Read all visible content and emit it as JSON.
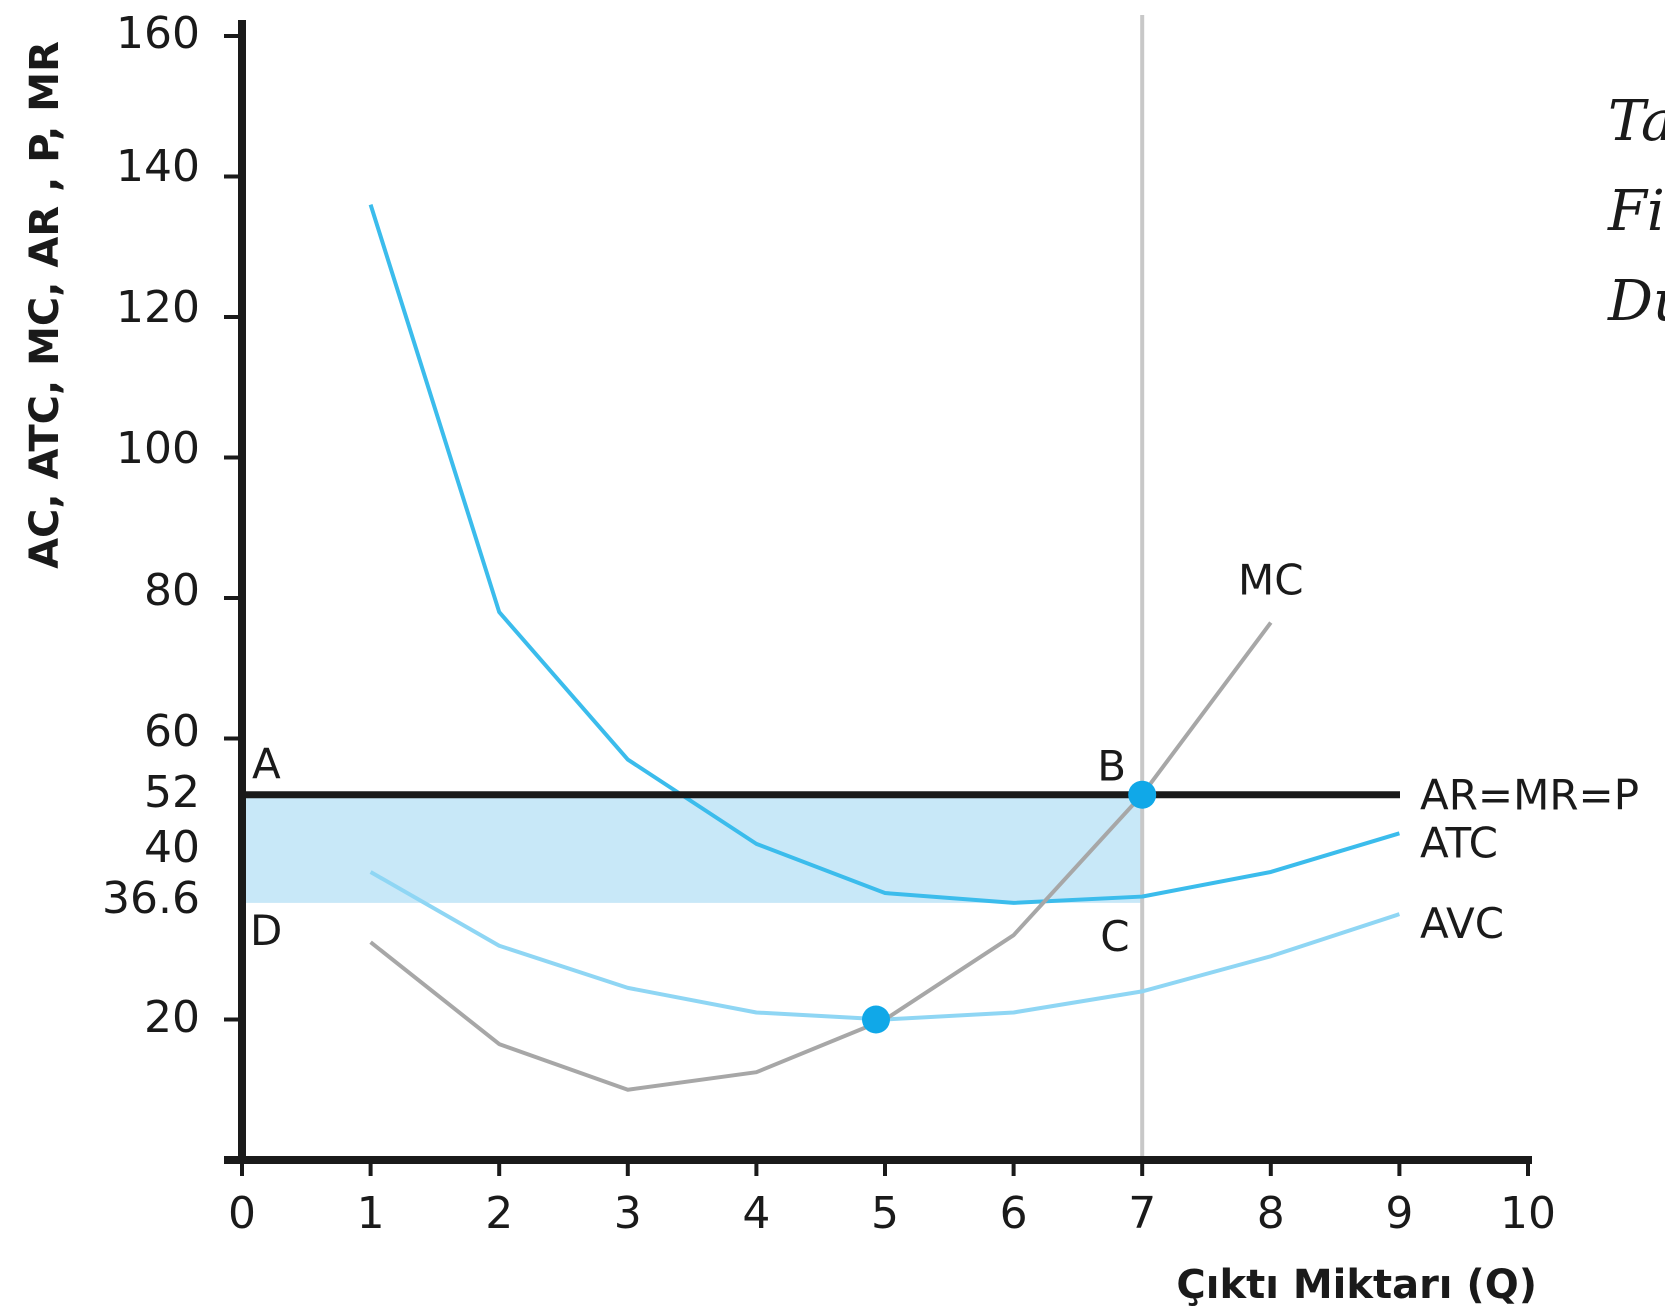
{
  "chart_data": {
    "type": "line",
    "xlabel": "Çıktı Miktarı (Q)",
    "ylabel": "AC, ATC, MC, AR , P, MR",
    "xlim": [
      0,
      10
    ],
    "ylim": [
      0,
      160
    ],
    "x_ticks": [
      0,
      1,
      2,
      3,
      4,
      5,
      6,
      7,
      8,
      9,
      10
    ],
    "y_ticks": [
      20,
      36.6,
      40,
      52,
      60,
      80,
      100,
      120,
      140,
      160
    ],
    "series": [
      {
        "name": "ATC",
        "color": "#3bbcec",
        "x": [
          1,
          2,
          3,
          4,
          5,
          6,
          7,
          8,
          9
        ],
        "y": [
          136,
          78,
          57,
          45,
          38,
          36.6,
          37.5,
          41,
          46.5
        ]
      },
      {
        "name": "AVC",
        "color": "#8fd6f4",
        "x": [
          1,
          2,
          3,
          4,
          5,
          6,
          7,
          8,
          9
        ],
        "y": [
          41,
          30.5,
          24.5,
          21,
          20,
          21,
          24,
          29,
          35
        ]
      },
      {
        "name": "MC",
        "color": "#a7a7a7",
        "x": [
          1,
          2,
          3,
          4,
          5,
          6,
          7,
          8
        ],
        "y": [
          31,
          16.5,
          10,
          12.5,
          20,
          32,
          52,
          76.5
        ]
      },
      {
        "name": "AR=MR=P",
        "color": "#1a1a1a",
        "x": [
          0,
          9
        ],
        "y": [
          52,
          52
        ]
      }
    ],
    "vertical_line": {
      "x": 7,
      "color": "#c8c8c8"
    },
    "shaded_rect": {
      "x": [
        0,
        7
      ],
      "y": [
        36.6,
        52
      ],
      "color": "#c8e8f8"
    },
    "points": [
      {
        "x": 7,
        "y": 52,
        "color": "#10a8e8"
      },
      {
        "x": 4.93,
        "y": 20,
        "color": "#10a8e8"
      }
    ],
    "annotations": [
      {
        "text": "A",
        "x": 0,
        "y": 52
      },
      {
        "text": "B",
        "x": 7,
        "y": 52
      },
      {
        "text": "C",
        "x": 7,
        "y": 36.6
      },
      {
        "text": "D",
        "x": 0,
        "y": 36.6
      }
    ],
    "side_text": [
      "Tar",
      "Fir",
      "Du"
    ]
  }
}
